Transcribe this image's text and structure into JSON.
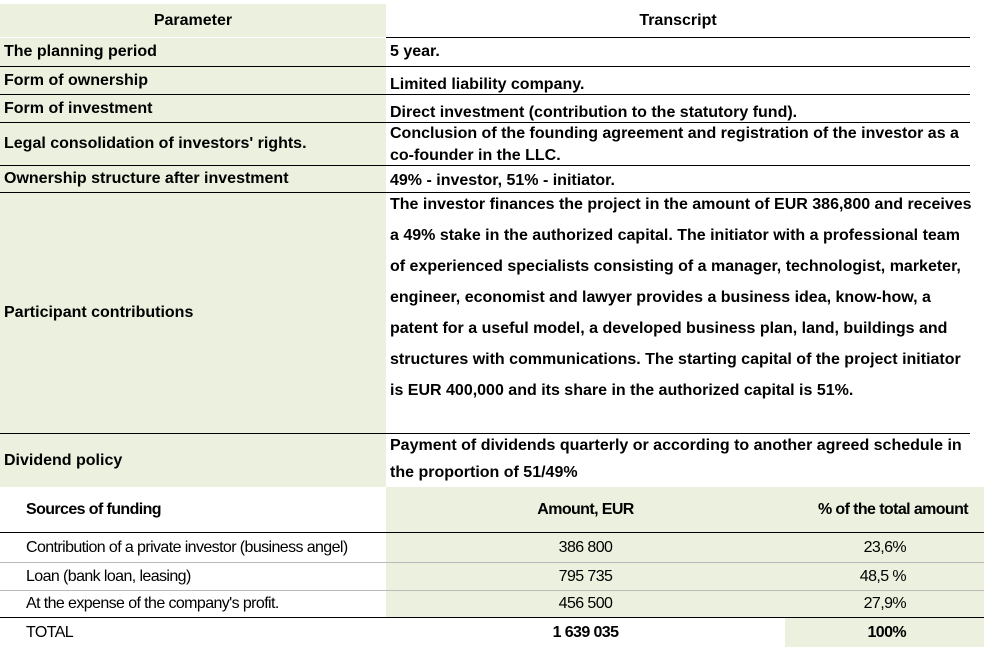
{
  "table1": {
    "headers": {
      "parameter": "Parameter",
      "transcript": "Transcript"
    },
    "rows": [
      {
        "parameter": "The planning period",
        "transcript": "5 year."
      },
      {
        "parameter": "Form of ownership",
        "transcript": "Limited liability company."
      },
      {
        "parameter": "Form of investment",
        "transcript": "Direct investment (contribution to the statutory fund)."
      },
      {
        "parameter": "Legal consolidation of investors' rights.",
        "transcript": "Conclusion of the founding agreement and registration of the investor as a co-founder in the LLC."
      },
      {
        "parameter": "Ownership structure after investment",
        "transcript": "49% - investor, 51% - initiator."
      },
      {
        "parameter": "Participant contributions",
        "transcript": "The investor finances the project in the amount of EUR 386,800 and receives a 49% stake in the authorized capital. The initiator with a professional team of experienced specialists consisting of a manager, technologist, marketer, engineer, economist and lawyer provides a business idea, know-how, a patent for a useful model, a developed business plan, land, buildings and structures with communications. The starting capital of the project initiator is EUR 400,000 and its share in the authorized capital is 51%."
      },
      {
        "parameter": "Dividend policy",
        "transcript": "Payment of dividends quarterly or according to another agreed schedule in the proportion of 51/49%"
      }
    ]
  },
  "table2": {
    "headers": {
      "source": "Sources of funding",
      "amount": "Amount, EUR",
      "percent": "% of the total amount"
    },
    "rows": [
      {
        "source": "Contribution of a private investor (business angel)",
        "amount": "386 800",
        "percent": "23,6%"
      },
      {
        "source": "Loan (bank loan, leasing)",
        "amount": "795 735",
        "percent": "48,5 %"
      },
      {
        "source": "At the expense of the company's profit.",
        "amount": "456 500",
        "percent": "27,9%"
      }
    ],
    "total": {
      "source": "TOTAL",
      "amount": "1 639 035",
      "percent": "100%"
    }
  },
  "colors": {
    "highlight": "#ebf1de"
  }
}
